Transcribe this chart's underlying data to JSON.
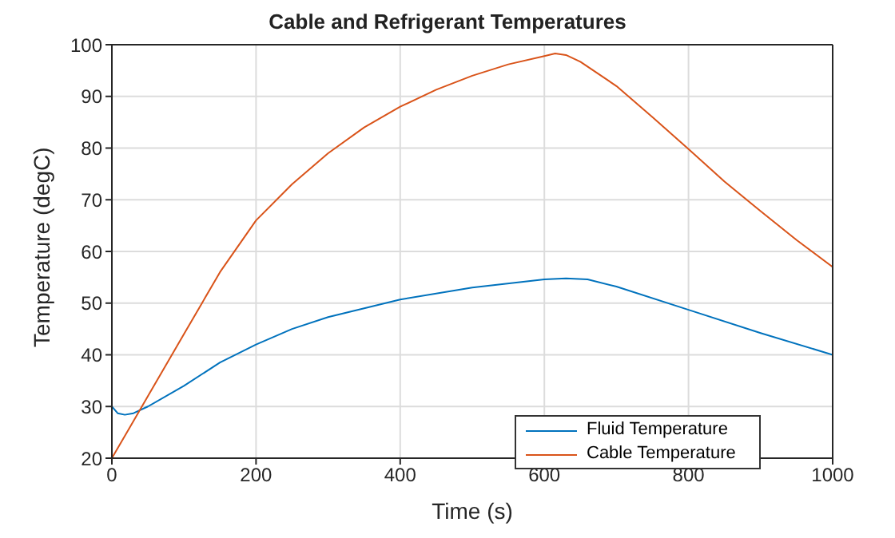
{
  "chart_data": {
    "type": "line",
    "title": "Cable and Refrigerant Temperatures",
    "xlabel": "Time (s)",
    "ylabel": "Temperature (degC)",
    "xlim": [
      0,
      1000
    ],
    "ylim": [
      20,
      100
    ],
    "xticks": [
      0,
      200,
      400,
      600,
      800,
      1000
    ],
    "yticks": [
      20,
      30,
      40,
      50,
      60,
      70,
      80,
      90,
      100
    ],
    "grid": true,
    "legend": "bottom right",
    "line_style": "solid",
    "marker": "none",
    "series": [
      {
        "name": "Fluid Temperature",
        "color": "#0072bd",
        "x": [
          0,
          8,
          18,
          30,
          50,
          100,
          150,
          200,
          250,
          300,
          400,
          500,
          600,
          630,
          660,
          700,
          800,
          900,
          1000
        ],
        "values": [
          30,
          28.7,
          28.4,
          28.7,
          30,
          34,
          38.5,
          42,
          45,
          47.3,
          50.7,
          53,
          54.6,
          54.8,
          54.6,
          53.2,
          48.7,
          44.2,
          40
        ]
      },
      {
        "name": "Cable Temperature",
        "color": "#d95319",
        "x": [
          0,
          25,
          50,
          100,
          150,
          200,
          250,
          300,
          350,
          400,
          450,
          500,
          550,
          600,
          615,
          630,
          650,
          700,
          750,
          800,
          850,
          900,
          950,
          1000
        ],
        "values": [
          20,
          26,
          32,
          44,
          56,
          66,
          73,
          79,
          84,
          88,
          91.3,
          94,
          96.2,
          97.8,
          98.3,
          98,
          96.7,
          92,
          86,
          79.8,
          73.5,
          67.8,
          62.2,
          57
        ]
      }
    ]
  }
}
